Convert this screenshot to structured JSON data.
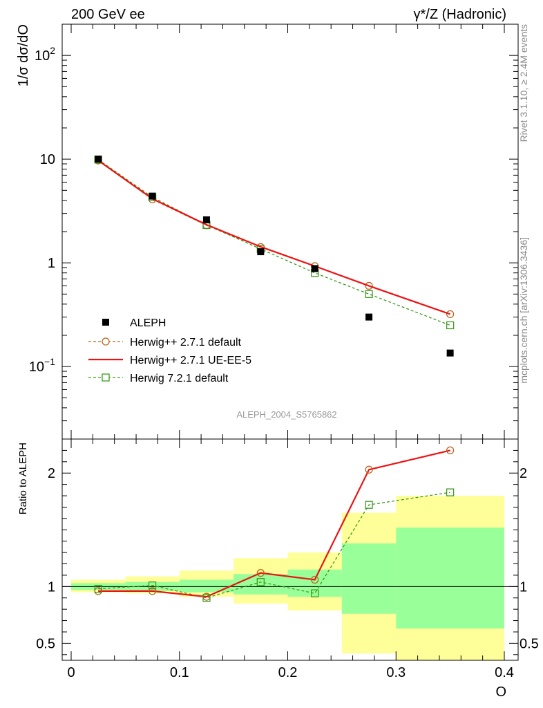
{
  "header": {
    "left": "200 GeV ee",
    "right": "γ*/Z (Hadronic)"
  },
  "side": {
    "rivet": "Rivet 3.1.10, ≥ 2.4M events",
    "source": "mcplots.cern.ch [arXiv:1306.3436]"
  },
  "analysis_id": "ALEPH_2004_S5765862",
  "colors": {
    "data": "#000000",
    "h271": "#b8641e",
    "ueee5": "#ee1111",
    "h721": "#3c9a1c",
    "band_inner": "#99ff99",
    "band_outer": "#ffff99"
  },
  "chart_data": [
    {
      "type": "scatter",
      "panel": "main",
      "ylabel": "1/σ dσ/dO",
      "yscale": "log",
      "xlim": [
        0,
        0.4
      ],
      "ylim": [
        0.02,
        200
      ],
      "ytick_labels": [
        "10^-1",
        "1",
        "10",
        "10^2"
      ],
      "x": [
        0.025,
        0.075,
        0.125,
        0.175,
        0.225,
        0.275,
        0.35
      ],
      "series": [
        {
          "name": "ALEPH",
          "style": "markers",
          "values": [
            10.0,
            4.4,
            2.6,
            1.28,
            0.88,
            0.3,
            0.135
          ]
        },
        {
          "name": "Herwig++ 2.7.1 default",
          "style": "dashed-circle",
          "values": [
            9.7,
            4.1,
            2.3,
            1.42,
            0.93,
            0.6,
            0.32
          ]
        },
        {
          "name": "Herwig++ 2.7.1 UE-EE-5",
          "style": "solid",
          "values": [
            9.7,
            4.15,
            2.33,
            1.43,
            0.93,
            0.6,
            0.32
          ]
        },
        {
          "name": "Herwig 7.2.1 default",
          "style": "dashed-square",
          "values": [
            9.9,
            4.3,
            2.32,
            1.36,
            0.8,
            0.5,
            0.25
          ]
        }
      ]
    },
    {
      "type": "line",
      "panel": "ratio",
      "ylabel": "Ratio to ALEPH",
      "xlabel": "O",
      "xlim": [
        0,
        0.4
      ],
      "ylim": [
        0.35,
        2.3
      ],
      "xtick_labels": [
        "0",
        "0.1",
        "0.2",
        "0.3",
        "0.4"
      ],
      "ytick_labels": [
        "0.5",
        "1",
        "2"
      ],
      "bins": [
        {
          "lo": 0.0,
          "hi": 0.05,
          "inner": [
            0.97,
            1.03
          ],
          "outer": [
            0.95,
            1.06
          ]
        },
        {
          "lo": 0.05,
          "hi": 0.1,
          "inner": [
            0.96,
            1.04
          ],
          "outer": [
            0.94,
            1.09
          ]
        },
        {
          "lo": 0.1,
          "hi": 0.15,
          "inner": [
            0.95,
            1.06
          ],
          "outer": [
            0.91,
            1.14
          ]
        },
        {
          "lo": 0.15,
          "hi": 0.2,
          "inner": [
            0.93,
            1.11
          ],
          "outer": [
            0.85,
            1.25
          ]
        },
        {
          "lo": 0.2,
          "hi": 0.25,
          "inner": [
            0.91,
            1.15
          ],
          "outer": [
            0.79,
            1.3
          ]
        },
        {
          "lo": 0.25,
          "hi": 0.3,
          "inner": [
            0.76,
            1.38
          ],
          "outer": [
            0.41,
            1.65
          ]
        },
        {
          "lo": 0.3,
          "hi": 0.4,
          "inner": [
            0.63,
            1.52
          ],
          "outer": [
            0.35,
            1.8
          ]
        }
      ],
      "x": [
        0.025,
        0.075,
        0.125,
        0.175,
        0.225,
        0.275,
        0.35
      ],
      "series": [
        {
          "name": "Herwig++ 2.7.1 default",
          "values": [
            0.96,
            0.96,
            0.91,
            1.12,
            1.06,
            2.03,
            2.2
          ]
        },
        {
          "name": "Herwig++ 2.7.1 UE-EE-5",
          "values": [
            0.96,
            0.96,
            0.91,
            1.12,
            1.06,
            2.03,
            2.2
          ]
        },
        {
          "name": "Herwig 7.2.1 default",
          "values": [
            0.98,
            1.01,
            0.9,
            1.04,
            0.94,
            1.72,
            1.83
          ]
        }
      ]
    }
  ]
}
